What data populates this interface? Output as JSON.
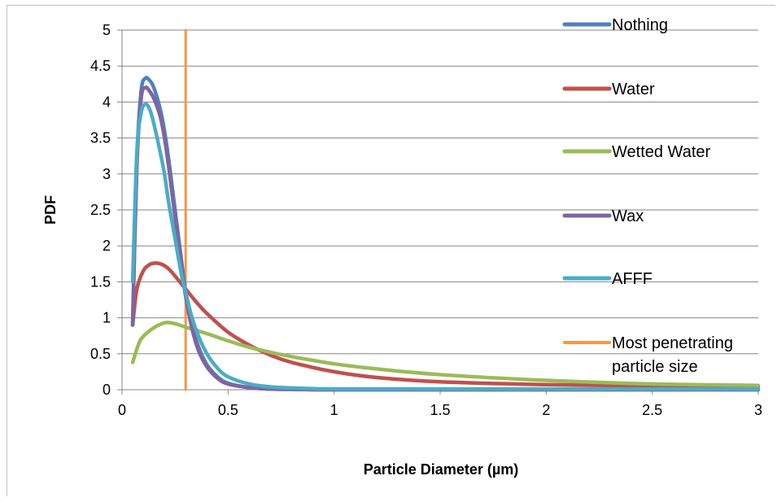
{
  "chart_data": {
    "type": "line",
    "xlabel": "Particle Diameter (µm)",
    "ylabel": "PDF",
    "xlim": [
      0,
      3
    ],
    "ylim": [
      0,
      5
    ],
    "x_ticks": [
      "0",
      "0.5",
      "1",
      "1.5",
      "2",
      "2.5",
      "3"
    ],
    "y_ticks": [
      "0",
      "0.5",
      "1",
      "1.5",
      "2",
      "2.5",
      "3",
      "3.5",
      "4",
      "4.5",
      "5"
    ],
    "grid": "horizontal",
    "legend_position": "right",
    "series": [
      {
        "name": "Nothing",
        "color": "#4f81bd",
        "x": [
          0.05,
          0.07,
          0.09,
          0.11,
          0.13,
          0.15,
          0.18,
          0.2,
          0.22,
          0.25,
          0.28,
          0.3,
          0.33,
          0.36,
          0.4,
          0.45,
          0.5,
          0.6,
          0.7,
          0.8,
          1.0,
          1.5,
          2.0,
          2.5,
          3.0
        ],
        "y": [
          0.9,
          3.2,
          4.15,
          4.33,
          4.3,
          4.2,
          3.9,
          3.6,
          3.2,
          2.5,
          1.8,
          1.35,
          0.9,
          0.6,
          0.35,
          0.18,
          0.09,
          0.03,
          0.01,
          0.005,
          0.0,
          0.0,
          0.0,
          0.0,
          0.0
        ]
      },
      {
        "name": "Water",
        "color": "#c0504d",
        "x": [
          0.05,
          0.07,
          0.1,
          0.13,
          0.16,
          0.19,
          0.22,
          0.25,
          0.3,
          0.35,
          0.4,
          0.5,
          0.6,
          0.7,
          0.8,
          1.0,
          1.2,
          1.5,
          2.0,
          2.5,
          3.0
        ],
        "y": [
          0.9,
          1.4,
          1.65,
          1.74,
          1.76,
          1.74,
          1.68,
          1.58,
          1.4,
          1.22,
          1.06,
          0.8,
          0.62,
          0.48,
          0.38,
          0.25,
          0.17,
          0.11,
          0.07,
          0.05,
          0.04
        ]
      },
      {
        "name": "Wetted Water",
        "color": "#9bbb59",
        "x": [
          0.05,
          0.08,
          0.1,
          0.13,
          0.16,
          0.2,
          0.23,
          0.26,
          0.3,
          0.4,
          0.5,
          0.6,
          0.7,
          0.8,
          1.0,
          1.2,
          1.5,
          2.0,
          2.5,
          3.0
        ],
        "y": [
          0.38,
          0.65,
          0.74,
          0.82,
          0.88,
          0.93,
          0.93,
          0.91,
          0.87,
          0.78,
          0.68,
          0.59,
          0.52,
          0.46,
          0.36,
          0.29,
          0.21,
          0.13,
          0.08,
          0.06
        ]
      },
      {
        "name": "Wax",
        "color": "#8064a2",
        "x": [
          0.05,
          0.07,
          0.09,
          0.11,
          0.13,
          0.15,
          0.18,
          0.2,
          0.22,
          0.25,
          0.28,
          0.3,
          0.33,
          0.36,
          0.4,
          0.45,
          0.5,
          0.6,
          0.7,
          0.8,
          1.0,
          1.5,
          2.0,
          2.5,
          3.0
        ],
        "y": [
          0.9,
          3.1,
          4.05,
          4.2,
          4.15,
          4.05,
          3.8,
          3.5,
          3.1,
          2.4,
          1.7,
          1.3,
          0.85,
          0.55,
          0.32,
          0.16,
          0.08,
          0.03,
          0.01,
          0.005,
          0.0,
          0.0,
          0.0,
          0.0,
          0.0
        ]
      },
      {
        "name": "AFFF",
        "color": "#4bacc6",
        "x": [
          0.05,
          0.07,
          0.09,
          0.11,
          0.13,
          0.15,
          0.18,
          0.2,
          0.22,
          0.25,
          0.28,
          0.3,
          0.33,
          0.36,
          0.4,
          0.45,
          0.5,
          0.6,
          0.7,
          0.8,
          1.0,
          1.5,
          2.0,
          2.5,
          3.0
        ],
        "y": [
          1.5,
          3.3,
          3.85,
          3.97,
          3.9,
          3.7,
          3.3,
          3.0,
          2.6,
          2.1,
          1.6,
          1.35,
          1.0,
          0.75,
          0.5,
          0.3,
          0.18,
          0.08,
          0.04,
          0.025,
          0.01,
          0.01,
          0.01,
          0.01,
          0.01
        ]
      },
      {
        "name": "Most penetrating particle size",
        "color": "#f79646",
        "x": [
          0.3,
          0.3
        ],
        "y": [
          0,
          5
        ]
      }
    ]
  }
}
